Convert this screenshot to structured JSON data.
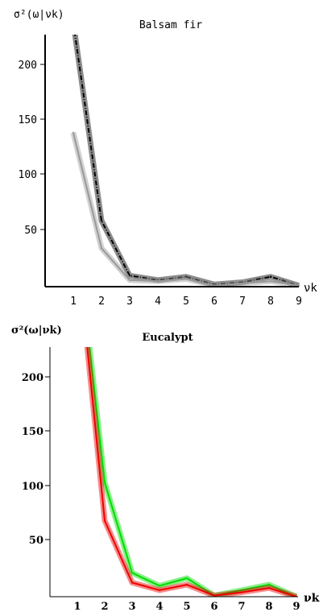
{
  "chart_data": [
    {
      "type": "line",
      "title": "Balsam fir",
      "ylabel": "σ²(ω|νk)",
      "xlabel": "νk",
      "x": [
        1,
        2,
        3,
        4,
        5,
        6,
        7,
        8,
        9
      ],
      "xticks": [
        "1",
        "2",
        "3",
        "4",
        "5",
        "6",
        "7",
        "8",
        "9"
      ],
      "yticks": [
        "50",
        "100",
        "150",
        "200"
      ],
      "xlim": [
        0,
        9
      ],
      "ylim": [
        0,
        225
      ],
      "grid": false,
      "series": [
        {
          "color": "#000000",
          "line_style": "dash-dot",
          "values": [
            240,
            60,
            10,
            6,
            9,
            2,
            4,
            9,
            1
          ]
        },
        {
          "color": "#999999",
          "line_style": "solid",
          "values": [
            140,
            35,
            6,
            5,
            7,
            1,
            3,
            5,
            1
          ]
        }
      ]
    },
    {
      "type": "line",
      "title": "Eucalypt",
      "ylabel": "σ²(ω|νk)",
      "xlabel": "νk",
      "x": [
        1,
        2,
        3,
        4,
        5,
        6,
        7,
        8,
        9
      ],
      "xticks": [
        "1",
        "2",
        "3",
        "4",
        "5",
        "6",
        "7",
        "8",
        "9"
      ],
      "yticks": [
        "50",
        "100",
        "150",
        "200"
      ],
      "xlim": [
        0,
        9
      ],
      "ylim": [
        0,
        225
      ],
      "grid": false,
      "series": [
        {
          "color": "#00dd00",
          "line_style": "solid",
          "values": [
            330,
            105,
            22,
            10,
            17,
            1,
            6,
            11,
            0
          ]
        },
        {
          "color": "#ee0000",
          "line_style": "solid",
          "values": [
            320,
            70,
            13,
            6,
            11,
            1,
            4,
            8,
            0
          ]
        }
      ]
    }
  ]
}
